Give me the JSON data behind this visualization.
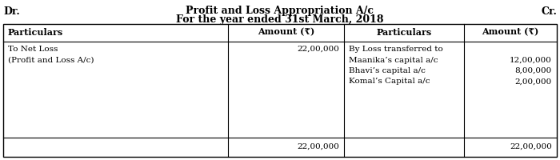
{
  "title_line1": "Profit and Loss Appropriation A/c",
  "title_line2": "For the year ended 31st March, 2018",
  "dr_label": "Dr.",
  "cr_label": "Cr.",
  "col_headers": [
    "Particulars",
    "Amount (₹)",
    "Particulars",
    "Amount (₹)"
  ],
  "left_particulars": [
    "To Net Loss",
    "(Profit and Loss A/c)"
  ],
  "left_amount": "22,00,000",
  "right_particulars": [
    "By Loss transferred to",
    "Maanika’s capital a/c",
    "Bhavi’s capital a/c",
    "Komal’s Capital a/c"
  ],
  "right_amounts": [
    "",
    "12,00,000",
    "8,00,000",
    "2,00,000"
  ],
  "total_left": "22,00,000",
  "total_right": "22,00,000",
  "bg_color": "#ffffff",
  "border_color": "#000000",
  "font_size_title": 9,
  "font_size_header": 8,
  "font_size_body": 7.5
}
